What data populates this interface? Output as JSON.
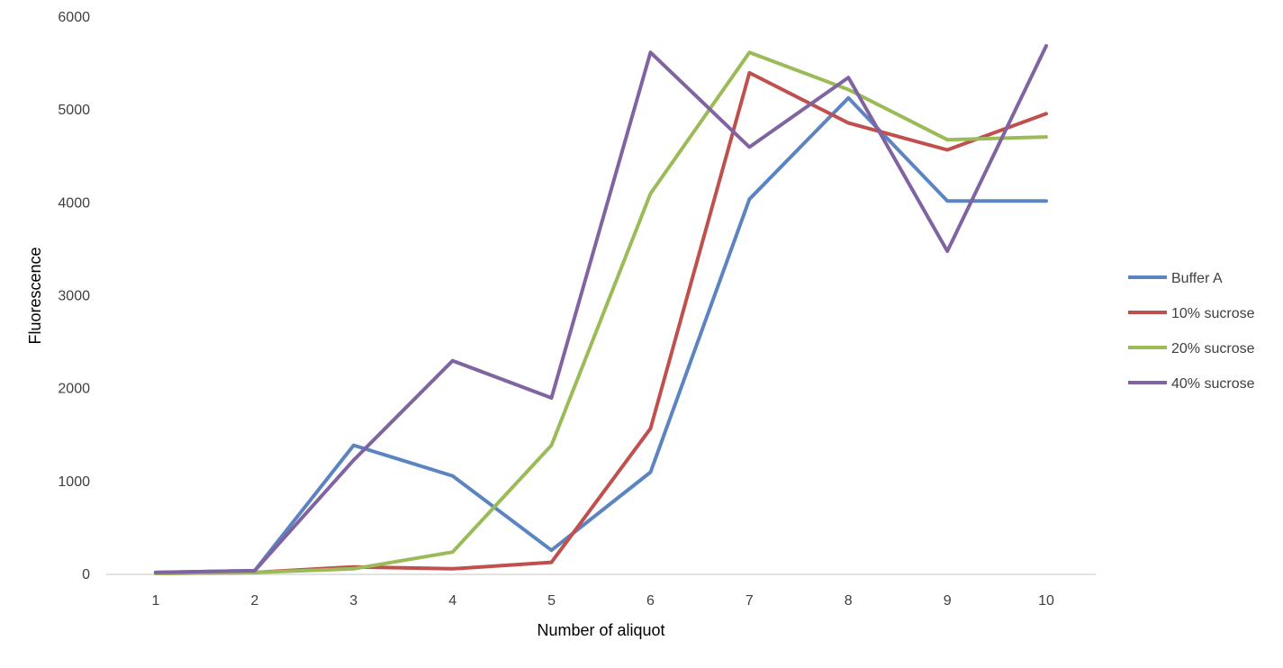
{
  "chart_data": {
    "type": "line",
    "title": "",
    "xlabel": "Number of aliquot",
    "ylabel": "Fluorescence",
    "categories": [
      "1",
      "2",
      "3",
      "4",
      "5",
      "6",
      "7",
      "8",
      "9",
      "10"
    ],
    "ylim": [
      0,
      6000
    ],
    "yticks": [
      "0",
      "1000",
      "2000",
      "3000",
      "4000",
      "5000",
      "6000"
    ],
    "grid": false,
    "legend_position": "right",
    "series": [
      {
        "name": "Buffer A",
        "color": "#5b84c0",
        "values": [
          20,
          40,
          1390,
          1060,
          260,
          1100,
          4040,
          5130,
          4020,
          4020
        ]
      },
      {
        "name": "10% sucrose",
        "color": "#c0504d",
        "values": [
          10,
          20,
          80,
          60,
          130,
          1570,
          5400,
          4860,
          4570,
          4960
        ]
      },
      {
        "name": "20% sucrose",
        "color": "#9bbb59",
        "values": [
          10,
          20,
          60,
          240,
          1390,
          4100,
          5620,
          5220,
          4680,
          4710
        ]
      },
      {
        "name": "40% sucrose",
        "color": "#8064a2",
        "values": [
          20,
          40,
          1230,
          2300,
          1900,
          5620,
          4600,
          5350,
          3480,
          5690
        ]
      }
    ]
  }
}
